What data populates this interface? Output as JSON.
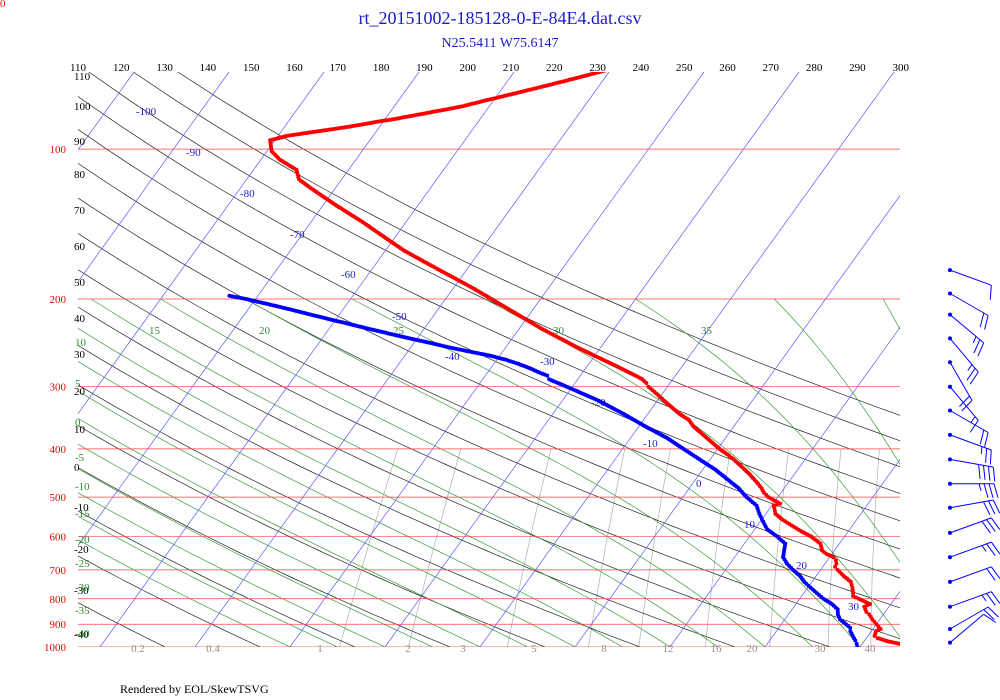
{
  "corner_label": "0",
  "chart_data": {
    "type": "scatter",
    "title": "rt_20151002-185128-0-E-84E4.dat.csv",
    "subtitle": "N25.5411 W75.6147",
    "footer": "Rendered by EOL/SkewTSVG",
    "ylim": [
      100,
      1000
    ],
    "y_scale": "log",
    "pressure_ticks": [
      "100",
      "200",
      "300",
      "400",
      "500",
      "600",
      "700",
      "800",
      "900",
      "1000"
    ],
    "pressure_values": [
      100,
      200,
      300,
      400,
      500,
      600,
      700,
      800,
      900,
      1000
    ],
    "isotherms": [
      -100,
      -90,
      -80,
      -70,
      -60,
      -50,
      -40,
      -30,
      -20,
      -10,
      0,
      10,
      20,
      30,
      40
    ],
    "isotherm_labels": [
      "-100",
      "-90",
      "-80",
      "-70",
      "-60",
      "-50",
      "-40",
      "-30",
      "-20",
      "-10",
      "0",
      "10",
      "20",
      "30"
    ],
    "theta_top_labels": [
      "110",
      "120",
      "130",
      "140",
      "150",
      "160",
      "170",
      "180",
      "190",
      "200",
      "210",
      "220",
      "230",
      "240",
      "250",
      "260",
      "270",
      "280",
      "290",
      "300"
    ],
    "left_labels": [
      "110",
      "100",
      "90",
      "80",
      "70",
      "60",
      "50",
      "40",
      "30",
      "20",
      "10",
      "0",
      "-10",
      "-20",
      "-30",
      "-40"
    ],
    "mixing_ratio_labels": [
      "0.2",
      "0.4",
      "1",
      "2",
      "3",
      "5",
      "8",
      "12",
      "16",
      "20",
      "30",
      "40"
    ],
    "moist_labels": [
      "10",
      "5",
      "0",
      "-5",
      "-10",
      "-15",
      "-20",
      "-25",
      "-30",
      "-35",
      "-40",
      "15",
      "20",
      "25",
      "30",
      "35"
    ],
    "series": [
      {
        "color": "#ff0000",
        "points": [
          [
            1000,
            26
          ],
          [
            990,
            24.5
          ],
          [
            975,
            22.6
          ],
          [
            960,
            21.2
          ],
          [
            950,
            20.7
          ],
          [
            930,
            20.5
          ],
          [
            920,
            20.8
          ],
          [
            900,
            20.0
          ],
          [
            880,
            19.2
          ],
          [
            860,
            18.5
          ],
          [
            850,
            18.0
          ],
          [
            830,
            17.4
          ],
          [
            820,
            17.8
          ],
          [
            800,
            16.2
          ],
          [
            790,
            15.4
          ],
          [
            780,
            15.2
          ],
          [
            760,
            14.7
          ],
          [
            740,
            14.1
          ],
          [
            720,
            12.9
          ],
          [
            700,
            11.8
          ],
          [
            690,
            11.3
          ],
          [
            680,
            11.2
          ],
          [
            670,
            10.9
          ],
          [
            660,
            10.4
          ],
          [
            650,
            9.4
          ],
          [
            640,
            8.7
          ],
          [
            620,
            8.0
          ],
          [
            600,
            6.5
          ],
          [
            585,
            5.0
          ],
          [
            570,
            3.6
          ],
          [
            555,
            2.2
          ],
          [
            540,
            1.0
          ],
          [
            520,
            0.2
          ],
          [
            515,
            0.7
          ],
          [
            500,
            -1.0
          ],
          [
            490,
            -1.8
          ],
          [
            480,
            -2.4
          ],
          [
            470,
            -3.1
          ],
          [
            450,
            -4.7
          ],
          [
            440,
            -5.6
          ],
          [
            420,
            -7.5
          ],
          [
            410,
            -8.6
          ],
          [
            400,
            -9.8
          ],
          [
            380,
            -12.0
          ],
          [
            360,
            -14.3
          ],
          [
            350,
            -15.2
          ],
          [
            340,
            -16.7
          ],
          [
            320,
            -19.3
          ],
          [
            310,
            -20.6
          ],
          [
            300,
            -22.0
          ],
          [
            295,
            -22.5
          ],
          [
            290,
            -23.2
          ],
          [
            285,
            -24.2
          ],
          [
            270,
            -27.6
          ],
          [
            250,
            -32.5
          ],
          [
            230,
            -37.5
          ],
          [
            210,
            -42.5
          ],
          [
            190,
            -48.0
          ],
          [
            170,
            -54.5
          ],
          [
            160,
            -58.0
          ],
          [
            150,
            -61.2
          ],
          [
            140,
            -64.6
          ],
          [
            130,
            -68.5
          ],
          [
            120,
            -72.5
          ],
          [
            115,
            -74.5
          ],
          [
            110,
            -75.5
          ],
          [
            105,
            -78.0
          ],
          [
            101,
            -79.5
          ],
          [
            96,
            -80.5
          ],
          [
            94,
            -79.0
          ],
          [
            93,
            -77.5
          ],
          [
            92,
            -76.0
          ],
          [
            91,
            -74.5
          ],
          [
            90,
            -73.0
          ],
          [
            89,
            -71.7
          ],
          [
            88,
            -70.5
          ],
          [
            87,
            -69.0
          ],
          [
            86,
            -67.8
          ],
          [
            85,
            -66.5
          ],
          [
            84,
            -65.3
          ],
          [
            83,
            -64.0
          ],
          [
            82,
            -62.8
          ],
          [
            80,
            -61.0
          ],
          [
            79,
            -60.0
          ],
          [
            77,
            -58.0
          ],
          [
            75,
            -56.0
          ],
          [
            73,
            -54.0
          ],
          [
            71,
            -52.0
          ],
          [
            69,
            -50.0
          ],
          [
            67,
            -48.0
          ],
          [
            65,
            -46.0
          ],
          [
            63,
            -44.0
          ],
          [
            61,
            -42.0
          ]
        ]
      },
      {
        "color": "#0000ff",
        "points": [
          [
            1000,
            19.7
          ],
          [
            985,
            19.4
          ],
          [
            970,
            19.0
          ],
          [
            950,
            18.4
          ],
          [
            930,
            17.8
          ],
          [
            915,
            17.5
          ],
          [
            900,
            16.8
          ],
          [
            880,
            15.8
          ],
          [
            860,
            15.2
          ],
          [
            840,
            14.8
          ],
          [
            820,
            13.8
          ],
          [
            800,
            12.5
          ],
          [
            780,
            11.4
          ],
          [
            760,
            10.3
          ],
          [
            740,
            9.2
          ],
          [
            720,
            8.3
          ],
          [
            700,
            7.1
          ],
          [
            680,
            6.0
          ],
          [
            660,
            5.1
          ],
          [
            640,
            4.7
          ],
          [
            620,
            4.3
          ],
          [
            600,
            2.9
          ],
          [
            580,
            1.3
          ],
          [
            560,
            0.3
          ],
          [
            540,
            -0.7
          ],
          [
            520,
            -1.6
          ],
          [
            500,
            -3.3
          ],
          [
            480,
            -4.8
          ],
          [
            460,
            -6.7
          ],
          [
            440,
            -8.7
          ],
          [
            420,
            -11.1
          ],
          [
            400,
            -13.6
          ],
          [
            380,
            -16.2
          ],
          [
            360,
            -19.4
          ],
          [
            340,
            -22.6
          ],
          [
            320,
            -26.2
          ],
          [
            300,
            -30.6
          ],
          [
            290,
            -33.0
          ],
          [
            285,
            -33.5
          ],
          [
            280,
            -34.8
          ],
          [
            275,
            -36.0
          ],
          [
            270,
            -37.4
          ],
          [
            265,
            -39.0
          ],
          [
            260,
            -41.0
          ],
          [
            255,
            -43.5
          ],
          [
            250,
            -46.0
          ],
          [
            245,
            -48.3
          ],
          [
            240,
            -50.8
          ],
          [
            235,
            -53.2
          ],
          [
            230,
            -55.6
          ],
          [
            225,
            -58.0
          ],
          [
            220,
            -60.5
          ],
          [
            215,
            -63.0
          ],
          [
            210,
            -65.5
          ],
          [
            205,
            -68.2
          ],
          [
            200,
            -71.0
          ],
          [
            197,
            -73.0
          ]
        ]
      }
    ],
    "wind_barbs": [
      {
        "pressure": 175,
        "speed": 10,
        "dir": 290
      },
      {
        "pressure": 195,
        "speed": 20,
        "dir": 300
      },
      {
        "pressure": 215,
        "speed": 25,
        "dir": 310
      },
      {
        "pressure": 240,
        "speed": 25,
        "dir": 320
      },
      {
        "pressure": 268,
        "speed": 20,
        "dir": 330
      },
      {
        "pressure": 300,
        "speed": 15,
        "dir": 320
      },
      {
        "pressure": 335,
        "speed": 20,
        "dir": 300
      },
      {
        "pressure": 375,
        "speed": 25,
        "dir": 290
      },
      {
        "pressure": 420,
        "speed": 40,
        "dir": 280
      },
      {
        "pressure": 470,
        "speed": 35,
        "dir": 270
      },
      {
        "pressure": 525,
        "speed": 30,
        "dir": 260
      },
      {
        "pressure": 590,
        "speed": 30,
        "dir": 250
      },
      {
        "pressure": 660,
        "speed": 25,
        "dir": 250
      },
      {
        "pressure": 740,
        "speed": 20,
        "dir": 250
      },
      {
        "pressure": 830,
        "speed": 25,
        "dir": 250
      },
      {
        "pressure": 920,
        "speed": 20,
        "dir": 240
      },
      {
        "pressure": 980,
        "speed": 10,
        "dir": 230
      }
    ]
  }
}
